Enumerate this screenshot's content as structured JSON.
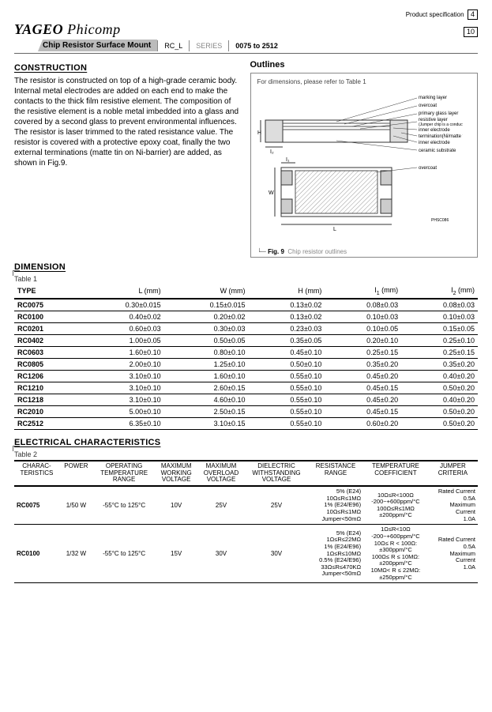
{
  "header": {
    "spec_label": "Product specification",
    "page_num": "4",
    "page_total": "10",
    "brand_a": "YAGEO",
    "brand_b": "Phicomp",
    "chip_label": "Chip Resistor Surface Mount",
    "code": "RC_L",
    "series_label": "SERIES",
    "series_range": "0075 to 2512"
  },
  "construction": {
    "heading": "CONSTRUCTION",
    "text": "The resistor is constructed on top of a high-grade ceramic body. Internal metal electrodes are added on each end to make the contacts to the thick film resistive element. The composition of the resistive element is a noble metal imbedded into a glass and covered by a second glass to prevent environmental influences. The resistor is laser trimmed to the rated resistance value. The resistor is covered with a protective epoxy coat, finally the two external terminations (matte tin on Ni-barrier) are added, as shown in Fig.9."
  },
  "outlines": {
    "heading": "Outlines",
    "caption": "For dimensions, please refer to Table 1",
    "labels": {
      "marking": "marking layer",
      "overcoat": "overcoat",
      "primary_glass": "primary glass layer",
      "resistive": "resistive layer\n(Jumper chip is a conductor)",
      "inner_el_top": "inner electrode",
      "termination": "termination(Ni/matte tin)",
      "inner_el_bot": "inner electrode",
      "substrate": "ceramic substrate",
      "overcoat2": "overcoat",
      "logo_small": "PHSC086"
    },
    "fig_no": "Fig. 9",
    "fig_text": "Chip resistor outlines"
  },
  "dimension": {
    "heading": "DIMENSION",
    "table_label": "Table 1",
    "headers": [
      "TYPE",
      "L (mm)",
      "W (mm)",
      "H (mm)",
      "I1 (mm)",
      "I2 (mm)"
    ],
    "rows": [
      [
        "RC0075",
        "0.30±0.015",
        "0.15±0.015",
        "0.13±0.02",
        "0.08±0.03",
        "0.08±0.03"
      ],
      [
        "RC0100",
        "0.40±0.02",
        "0.20±0.02",
        "0.13±0.02",
        "0.10±0.03",
        "0.10±0.03"
      ],
      [
        "RC0201",
        "0.60±0.03",
        "0.30±0.03",
        "0.23±0.03",
        "0.10±0.05",
        "0.15±0.05"
      ],
      [
        "RC0402",
        "1.00±0.05",
        "0.50±0.05",
        "0.35±0.05",
        "0.20±0.10",
        "0.25±0.10"
      ],
      [
        "RC0603",
        "1.60±0.10",
        "0.80±0.10",
        "0.45±0.10",
        "0.25±0.15",
        "0.25±0.15"
      ],
      [
        "RC0805",
        "2.00±0.10",
        "1.25±0.10",
        "0.50±0.10",
        "0.35±0.20",
        "0.35±0.20"
      ],
      [
        "RC1206",
        "3.10±0.10",
        "1.60±0.10",
        "0.55±0.10",
        "0.45±0.20",
        "0.40±0.20"
      ],
      [
        "RC1210",
        "3.10±0.10",
        "2.60±0.15",
        "0.55±0.10",
        "0.45±0.15",
        "0.50±0.20"
      ],
      [
        "RC1218",
        "3.10±0.10",
        "4.60±0.10",
        "0.55±0.10",
        "0.45±0.20",
        "0.40±0.20"
      ],
      [
        "RC2010",
        "5.00±0.10",
        "2.50±0.15",
        "0.55±0.10",
        "0.45±0.15",
        "0.50±0.20"
      ],
      [
        "RC2512",
        "6.35±0.10",
        "3.10±0.15",
        "0.55±0.10",
        "0.60±0.20",
        "0.50±0.20"
      ]
    ]
  },
  "electrical": {
    "heading": "ELECTRICAL CHARACTERISTICS",
    "table_label": "Table 2",
    "headers": [
      "CHARAC-\nTERISTICS",
      "POWER",
      "OPERATING\nTEMPERATURE\nRANGE",
      "MAXIMUM\nWORKING\nVOLTAGE",
      "MAXIMUM\nOVERLOAD\nVOLTAGE",
      "DIELECTRIC\nWITHSTANDING\nVOLTAGE",
      "RESISTANCE\nRANGE",
      "TEMPERATURE\nCOEFFICIENT",
      "JUMPER\nCRITERIA"
    ],
    "rows": [
      {
        "type": "RC0075",
        "power": "1/50 W",
        "temp": "-55°C to 125°C",
        "vw": "10V",
        "vo": "25V",
        "vd": "25V",
        "rr": "5% (E24)\n10Ω≤R≤1MΩ\n1% (E24/E96)\n10Ω≤R≤1MΩ\nJumper<50mΩ",
        "tc": "10Ω≤R<100Ω\n-200~+600ppm/°C\n100Ω≤R≤1MΩ\n±200ppm/°C",
        "jc": "Rated Current\n0.5A\nMaximum\nCurrent\n1.0A"
      },
      {
        "type": "RC0100",
        "power": "1/32 W",
        "temp": "-55°C to 125°C",
        "vw": "15V",
        "vo": "30V",
        "vd": "30V",
        "rr": "5% (E24)\n1Ω≤R≤22MΩ\n1% (E24/E96)\n1Ω≤R≤10MΩ\n0.5% (E24/E96)\n33Ω≤R≤470KΩ\nJumper<50mΩ",
        "tc": "1Ω≤R<10Ω\n-200~+600ppm/°C\n10Ω≤ R < 100Ω:\n±300ppm/°C\n100Ω≤ R ≤ 10MΩ:\n±200ppm/°C\n10MΩ< R ≤ 22MΩ:\n±250ppm/°C",
        "jc": "Rated Current\n0.5A\nMaximum\nCurrent\n1.0A"
      }
    ]
  },
  "colors": {
    "line": "#666",
    "box": "#888",
    "hatch": "#999"
  }
}
